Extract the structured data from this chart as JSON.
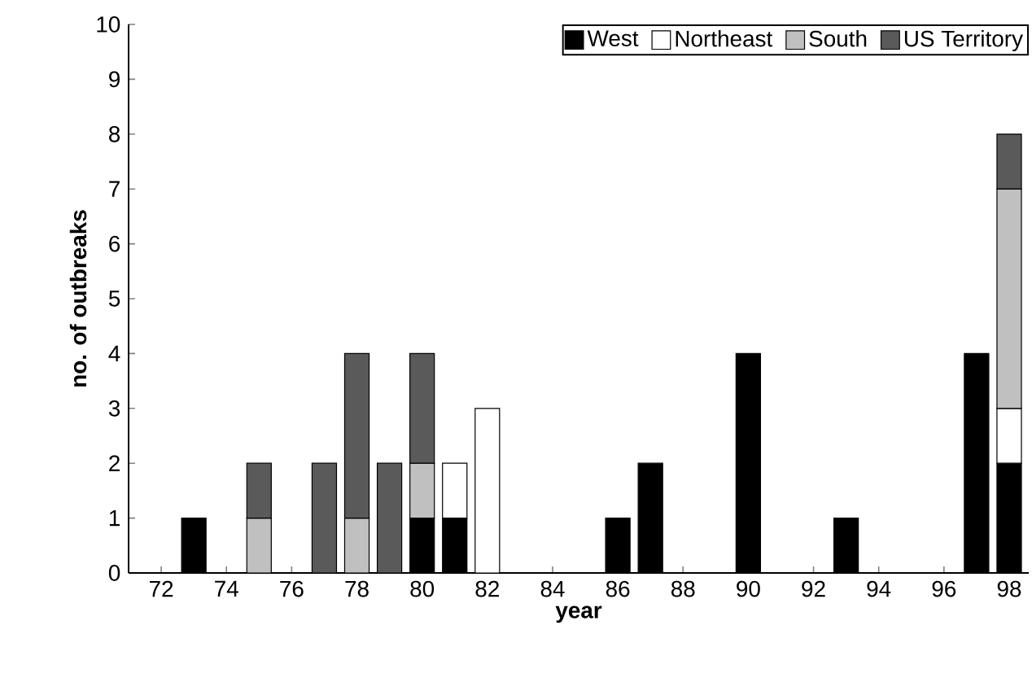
{
  "chart_data": {
    "type": "bar",
    "stacked": true,
    "xlabel": "year",
    "ylabel": "no. of outbreaks",
    "x": [
      73,
      75,
      77,
      78,
      79,
      80,
      81,
      82,
      86,
      87,
      90,
      93,
      97,
      98
    ],
    "series": [
      {
        "name": "West",
        "color": "#000000",
        "values": [
          1,
          null,
          null,
          null,
          null,
          1,
          1,
          null,
          1,
          2,
          4,
          1,
          4,
          2
        ]
      },
      {
        "name": "Northeast",
        "color": "#ffffff",
        "values": [
          null,
          null,
          null,
          null,
          null,
          null,
          1,
          3,
          null,
          null,
          null,
          null,
          null,
          1
        ]
      },
      {
        "name": "South",
        "color": "#c0c0c0",
        "values": [
          null,
          1,
          null,
          1,
          null,
          1,
          null,
          null,
          null,
          null,
          null,
          null,
          null,
          4
        ]
      },
      {
        "name": "US  Territory",
        "color": "#5a5a5a",
        "values": [
          null,
          1,
          2,
          3,
          2,
          2,
          null,
          null,
          null,
          null,
          null,
          null,
          null,
          1
        ]
      }
    ],
    "xlim": [
      71,
      98.6
    ],
    "xticks": [
      72,
      74,
      76,
      78,
      80,
      82,
      84,
      86,
      88,
      90,
      92,
      94,
      96,
      98
    ],
    "ylim": [
      0,
      10
    ],
    "yticks": [
      0,
      1,
      2,
      3,
      4,
      5,
      6,
      7,
      8,
      9,
      10
    ],
    "grid": false,
    "legend": "top right"
  }
}
